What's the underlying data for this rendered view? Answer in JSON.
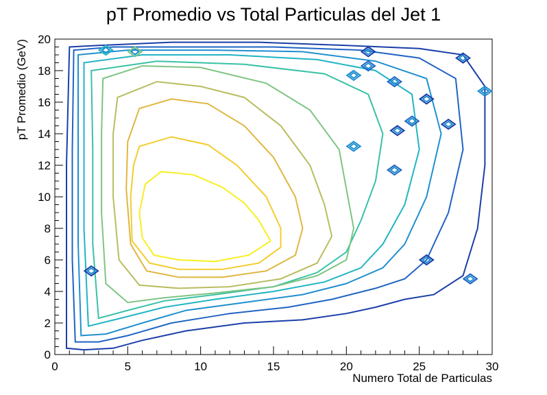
{
  "chart_data": {
    "type": "contour",
    "title": "pT Promedio vs Total Particulas del Jet 1",
    "xlabel": "Numero Total de Particulas",
    "ylabel": "pT Promedio (GeV)",
    "xlim": [
      0,
      30
    ],
    "ylim": [
      0,
      20
    ],
    "xticks": [
      0,
      5,
      10,
      15,
      20,
      25,
      30
    ],
    "yticks": [
      0,
      2,
      4,
      6,
      8,
      10,
      12,
      14,
      16,
      18,
      20
    ],
    "grid": false,
    "legend": "none",
    "colormap": [
      "#1a3ea8",
      "#1f63c4",
      "#1e8fd0",
      "#21b4c5",
      "#38c1a4",
      "#7ec482",
      "#b8bd5e",
      "#e0b640",
      "#f3cc2d",
      "#f7ef1f"
    ],
    "peak": {
      "x": 9.5,
      "y": 8.5
    },
    "levels": [
      {
        "level": 1,
        "color": "#1a3ea8",
        "points": [
          [
            1,
            19.5
          ],
          [
            3,
            19.6
          ],
          [
            8,
            19.8
          ],
          [
            14,
            19.8
          ],
          [
            20,
            19.6
          ],
          [
            25,
            19.4
          ],
          [
            28,
            19.0
          ],
          [
            29.5,
            17
          ],
          [
            29.5,
            12
          ],
          [
            29,
            8
          ],
          [
            28,
            5
          ],
          [
            26,
            3.8
          ],
          [
            24,
            3.5
          ],
          [
            22,
            3.0
          ],
          [
            20,
            2.6
          ],
          [
            17,
            2.2
          ],
          [
            13,
            2.0
          ],
          [
            9,
            1.5
          ],
          [
            6,
            0.9
          ],
          [
            4,
            0.4
          ],
          [
            2,
            0.3
          ],
          [
            0.8,
            0.4
          ],
          [
            0.8,
            5
          ],
          [
            0.8,
            12
          ]
        ]
      },
      {
        "level": 2,
        "color": "#1f63c4",
        "points": [
          [
            1.3,
            19.3
          ],
          [
            4,
            19.5
          ],
          [
            9,
            19.5
          ],
          [
            15,
            19.5
          ],
          [
            21,
            19.3
          ],
          [
            25,
            18.8
          ],
          [
            27.5,
            17.5
          ],
          [
            28,
            13
          ],
          [
            27,
            9
          ],
          [
            25.5,
            6
          ],
          [
            24,
            4.8
          ],
          [
            22,
            4.2
          ],
          [
            19,
            3.5
          ],
          [
            16,
            3.0
          ],
          [
            12,
            2.6
          ],
          [
            8,
            2.0
          ],
          [
            5,
            1.2
          ],
          [
            3,
            0.8
          ],
          [
            1.4,
            0.8
          ],
          [
            1.2,
            6
          ],
          [
            1.2,
            13
          ]
        ]
      },
      {
        "level": 3,
        "color": "#1e8fd0",
        "points": [
          [
            1.6,
            19.0
          ],
          [
            5,
            19.3
          ],
          [
            11,
            19.3
          ],
          [
            17,
            19.2
          ],
          [
            22,
            18.6
          ],
          [
            25.5,
            17.5
          ],
          [
            26.5,
            14
          ],
          [
            25.5,
            10
          ],
          [
            24,
            7
          ],
          [
            22.5,
            5.5
          ],
          [
            20,
            4.5
          ],
          [
            17,
            3.8
          ],
          [
            13,
            3.3
          ],
          [
            9,
            2.8
          ],
          [
            6,
            2.0
          ],
          [
            3.5,
            1.3
          ],
          [
            1.8,
            1.2
          ],
          [
            1.6,
            7
          ],
          [
            1.6,
            14
          ]
        ]
      },
      {
        "level": 4,
        "color": "#21b4c5",
        "points": [
          [
            2.0,
            18.5
          ],
          [
            6,
            19.0
          ],
          [
            12,
            19.0
          ],
          [
            18,
            18.7
          ],
          [
            22,
            18.0
          ],
          [
            24.5,
            16.5
          ],
          [
            25,
            13
          ],
          [
            24,
            9.5
          ],
          [
            22.5,
            7
          ],
          [
            21,
            5.5
          ],
          [
            18.5,
            4.6
          ],
          [
            15,
            4.0
          ],
          [
            11,
            3.5
          ],
          [
            7.5,
            3.0
          ],
          [
            4.5,
            2.3
          ],
          [
            2.3,
            1.8
          ],
          [
            2.0,
            8
          ],
          [
            2.0,
            14
          ]
        ]
      },
      {
        "level": 5,
        "color": "#38c1a4",
        "points": [
          [
            2.5,
            18.0
          ],
          [
            7,
            18.6
          ],
          [
            13,
            18.4
          ],
          [
            18.5,
            17.8
          ],
          [
            21.5,
            16.5
          ],
          [
            22.5,
            14
          ],
          [
            22,
            11
          ],
          [
            21,
            8.5
          ],
          [
            20,
            6.5
          ],
          [
            18,
            5.2
          ],
          [
            15,
            4.3
          ],
          [
            11,
            3.8
          ],
          [
            7.5,
            3.4
          ],
          [
            5,
            2.8
          ],
          [
            3,
            2.3
          ],
          [
            2.6,
            7
          ],
          [
            2.6,
            13
          ]
        ]
      },
      {
        "level": 6,
        "color": "#7ec482",
        "points": [
          [
            3.3,
            17.5
          ],
          [
            6,
            18.3
          ],
          [
            10,
            18.2
          ],
          [
            14.5,
            17.2
          ],
          [
            17.5,
            15.5
          ],
          [
            19.5,
            13
          ],
          [
            20,
            10.5
          ],
          [
            20.5,
            8
          ],
          [
            20,
            6
          ],
          [
            18,
            5.0
          ],
          [
            15,
            4.3
          ],
          [
            11,
            3.9
          ],
          [
            7.5,
            3.6
          ],
          [
            5,
            3.3
          ],
          [
            3.5,
            4.5
          ],
          [
            3.2,
            9
          ],
          [
            3.2,
            14
          ]
        ]
      },
      {
        "level": 7,
        "color": "#b8bd5e",
        "points": [
          [
            4.3,
            16.3
          ],
          [
            7,
            17.3
          ],
          [
            10,
            17.0
          ],
          [
            13,
            16.3
          ],
          [
            15.5,
            14.5
          ],
          [
            17.5,
            12
          ],
          [
            18.5,
            9.5
          ],
          [
            19,
            7.5
          ],
          [
            18,
            5.8
          ],
          [
            15.5,
            4.8
          ],
          [
            12,
            4.3
          ],
          [
            8.5,
            4.2
          ],
          [
            5.8,
            4.4
          ],
          [
            4.4,
            6
          ],
          [
            4.0,
            10
          ],
          [
            4.0,
            14
          ]
        ]
      },
      {
        "level": 8,
        "color": "#e0b640",
        "points": [
          [
            5.8,
            15.6
          ],
          [
            8,
            16.2
          ],
          [
            10.5,
            15.9
          ],
          [
            13,
            14.5
          ],
          [
            15,
            12.5
          ],
          [
            16.5,
            10
          ],
          [
            17,
            8
          ],
          [
            16.5,
            6.3
          ],
          [
            14.5,
            5.3
          ],
          [
            11.5,
            4.9
          ],
          [
            8.5,
            4.9
          ],
          [
            6.3,
            5.3
          ],
          [
            5.2,
            7
          ],
          [
            4.9,
            10.5
          ],
          [
            5.0,
            13.5
          ]
        ]
      },
      {
        "level": 9,
        "color": "#f3cc2d",
        "points": [
          [
            5.8,
            13.2
          ],
          [
            8,
            13.8
          ],
          [
            10.5,
            13.3
          ],
          [
            12.5,
            12
          ],
          [
            14.5,
            10
          ],
          [
            15.5,
            8
          ],
          [
            15.5,
            6.8
          ],
          [
            14,
            5.8
          ],
          [
            11.5,
            5.4
          ],
          [
            8.5,
            5.4
          ],
          [
            6.5,
            5.8
          ],
          [
            5.3,
            7.2
          ],
          [
            5.2,
            10
          ],
          [
            5.4,
            12
          ]
        ]
      },
      {
        "level": 10,
        "color": "#f7ef1f",
        "points": [
          [
            7.3,
            11.6
          ],
          [
            9.5,
            11.4
          ],
          [
            11.5,
            10.6
          ],
          [
            13,
            9.6
          ],
          [
            14,
            8.5
          ],
          [
            14.8,
            7.2
          ],
          [
            13.3,
            6.3
          ],
          [
            11,
            5.9
          ],
          [
            8.5,
            6.0
          ],
          [
            6.8,
            6.3
          ],
          [
            6.0,
            7.4
          ],
          [
            5.8,
            9
          ],
          [
            6.2,
            10.8
          ]
        ]
      }
    ],
    "islands": [
      {
        "x": 21.5,
        "y": 19.2,
        "color": "#1a3ea8"
      },
      {
        "x": 21.5,
        "y": 18.3,
        "color": "#1f63c4"
      },
      {
        "x": 20.5,
        "y": 17.7,
        "color": "#1e8fd0"
      },
      {
        "x": 23.3,
        "y": 17.3,
        "color": "#1f63c4"
      },
      {
        "x": 25.5,
        "y": 16.2,
        "color": "#1a3ea8"
      },
      {
        "x": 24.5,
        "y": 14.8,
        "color": "#1f63c4"
      },
      {
        "x": 23.5,
        "y": 14.2,
        "color": "#1a3ea8"
      },
      {
        "x": 27.0,
        "y": 14.6,
        "color": "#1a3ea8"
      },
      {
        "x": 20.5,
        "y": 13.2,
        "color": "#1e8fd0"
      },
      {
        "x": 23.3,
        "y": 11.7,
        "color": "#1f63c4"
      },
      {
        "x": 2.5,
        "y": 5.3,
        "color": "#1a3ea8"
      },
      {
        "x": 25.5,
        "y": 6.0,
        "color": "#1a3ea8"
      },
      {
        "x": 28.5,
        "y": 4.8,
        "color": "#1f63c4"
      },
      {
        "x": 28.0,
        "y": 18.8,
        "color": "#1a3ea8"
      },
      {
        "x": 29.5,
        "y": 16.7,
        "color": "#1e8fd0"
      },
      {
        "x": 3.5,
        "y": 19.3,
        "color": "#21b4c5"
      },
      {
        "x": 5.5,
        "y": 19.2,
        "color": "#7ec482"
      }
    ]
  }
}
